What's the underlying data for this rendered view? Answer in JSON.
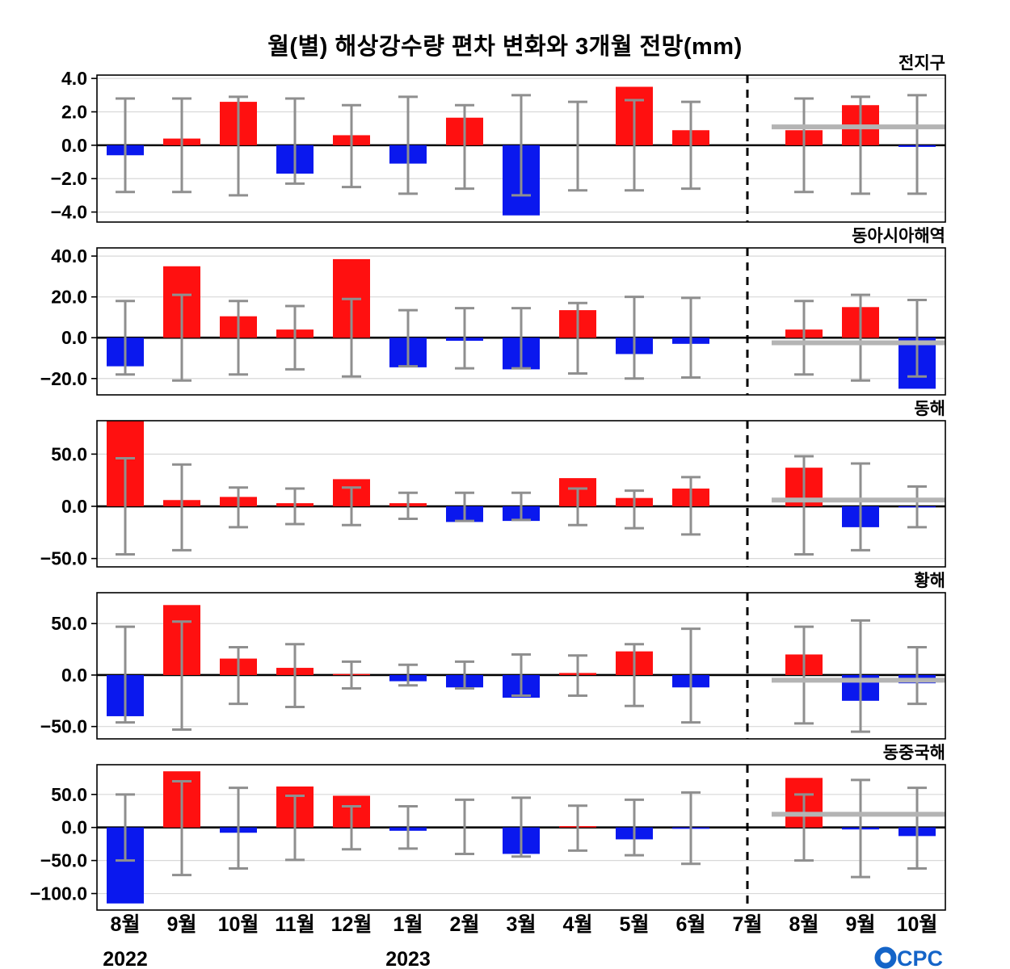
{
  "logo": {
    "text": "CPC",
    "color": "#1464c8"
  },
  "chart_data": {
    "type": "bar",
    "title": "월(별) 해상강수량 편차 변화와 3개월 전망(mm)",
    "categories": [
      "8월",
      "9월",
      "10월",
      "11월",
      "12월",
      "1월",
      "2월",
      "3월",
      "4월",
      "5월",
      "6월",
      "7월",
      "8월",
      "9월",
      "10월"
    ],
    "year_labels": [
      {
        "text": "2022",
        "category_index": 0
      },
      {
        "text": "2023",
        "category_index": 5
      }
    ],
    "forecast": {
      "divider_category_index": 11,
      "forecast_category_indices": [
        12,
        13,
        14
      ]
    },
    "colors": {
      "positive": "#ff1010",
      "negative": "#0a18ee",
      "error_bar": "#8f8f8f",
      "forecast_line": "#b4b4b4",
      "grid": "#d8d8d8",
      "zero_line": "#000000"
    },
    "panels": [
      {
        "label": "전지구",
        "ylim": [
          -4.6,
          4.2
        ],
        "yticks": [
          {
            "value": 4,
            "label": "4.0"
          },
          {
            "value": 2,
            "label": "2.0"
          },
          {
            "value": 0,
            "label": "0.0"
          },
          {
            "value": -2,
            "label": "−2.0"
          },
          {
            "value": -4,
            "label": "−4.0"
          }
        ],
        "values": [
          -0.6,
          0.4,
          2.6,
          -1.7,
          0.6,
          -1.1,
          1.65,
          -4.2,
          0,
          3.5,
          0.9,
          0,
          0.9,
          2.4,
          -0.1
        ],
        "err_lo": [
          -2.8,
          -2.8,
          -3.0,
          -2.3,
          -2.5,
          -2.9,
          -2.6,
          -3.0,
          -2.7,
          -2.7,
          -2.6,
          null,
          -2.8,
          -2.9,
          -2.9
        ],
        "err_hi": [
          2.8,
          2.8,
          2.9,
          2.8,
          2.4,
          2.9,
          2.4,
          3.0,
          2.6,
          2.7,
          2.6,
          null,
          2.8,
          2.9,
          3.0
        ],
        "forecast_line_y": 1.1
      },
      {
        "label": "동아시아해역",
        "ylim": [
          -28,
          44
        ],
        "yticks": [
          {
            "value": 40,
            "label": "40.0"
          },
          {
            "value": 20,
            "label": "20.0"
          },
          {
            "value": 0,
            "label": "0.0"
          },
          {
            "value": -20,
            "label": "−20.0"
          }
        ],
        "values": [
          -14,
          35,
          10.5,
          4,
          38.5,
          -14.5,
          -1.5,
          -15.5,
          13.5,
          -8,
          -3,
          0,
          4,
          15,
          -25
        ],
        "err_lo": [
          -18,
          -21,
          -18,
          -15.5,
          -19,
          -14,
          -15,
          -15,
          -17.5,
          -20,
          -19.5,
          null,
          -18,
          -21,
          -19
        ],
        "err_hi": [
          18,
          21,
          18,
          15.5,
          19,
          13.5,
          14.5,
          14.5,
          17,
          20,
          19.5,
          null,
          18,
          21,
          18.5
        ],
        "forecast_line_y": -2.5
      },
      {
        "label": "동해",
        "ylim": [
          -58,
          82
        ],
        "yticks": [
          {
            "value": 50,
            "label": "50.0"
          },
          {
            "value": 0,
            "label": "0.0"
          },
          {
            "value": -50,
            "label": "−50.0"
          }
        ],
        "values": [
          82,
          6,
          9,
          3,
          26,
          3,
          -15,
          -14,
          27,
          8,
          17,
          0,
          37,
          -20,
          -1
        ],
        "err_lo": [
          -46,
          -42,
          -20,
          -17,
          -18,
          -12,
          -14,
          -13,
          -18,
          -21,
          -27,
          null,
          -46,
          -42,
          -20
        ],
        "err_hi": [
          46,
          40,
          18,
          17,
          18,
          13,
          13,
          13,
          17,
          15,
          28,
          null,
          48,
          41,
          19
        ],
        "forecast_line_y": 6
      },
      {
        "label": "황해",
        "ylim": [
          -62,
          80
        ],
        "yticks": [
          {
            "value": 50,
            "label": "50.0"
          },
          {
            "value": 0,
            "label": "0.0"
          },
          {
            "value": -50,
            "label": "−50.0"
          }
        ],
        "values": [
          -40,
          68,
          16,
          7,
          1,
          -6,
          -12,
          -22,
          2,
          23,
          -12,
          0,
          20,
          -25,
          -8
        ],
        "err_lo": [
          -46,
          -53,
          -28,
          -31,
          -13,
          -10,
          -13,
          -20,
          -20,
          -30,
          -46,
          null,
          -47,
          -55,
          -28
        ],
        "err_hi": [
          47,
          52,
          27,
          30,
          13,
          10,
          13,
          20,
          19,
          30,
          45,
          null,
          47,
          53,
          27
        ],
        "forecast_line_y": -5
      },
      {
        "label": "동중국해",
        "ylim": [
          -125,
          95
        ],
        "yticks": [
          {
            "value": 50,
            "label": "50.0"
          },
          {
            "value": 0,
            "label": "0.0"
          },
          {
            "value": -50,
            "label": "−50.0"
          },
          {
            "value": -100,
            "label": "−100.0"
          }
        ],
        "values": [
          -115,
          85,
          -8,
          62,
          48,
          -5,
          0,
          -40,
          2,
          -18,
          -2,
          0,
          75,
          -3,
          -13
        ],
        "err_lo": [
          -50,
          -72,
          -62,
          -49,
          -33,
          -32,
          -40,
          -44,
          -35,
          -42,
          -55,
          null,
          -50,
          -75,
          -62
        ],
        "err_hi": [
          50,
          70,
          60,
          48,
          32,
          32,
          42,
          45,
          33,
          42,
          53,
          null,
          50,
          72,
          60
        ],
        "forecast_line_y": 20
      }
    ]
  }
}
